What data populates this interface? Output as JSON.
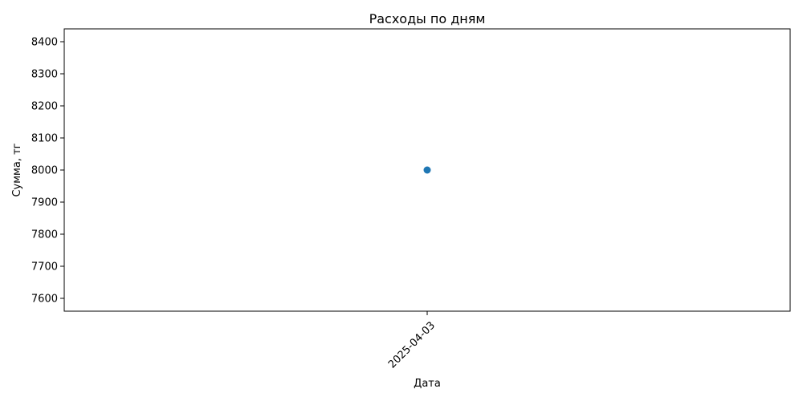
{
  "chart_data": {
    "type": "line",
    "title": "Расходы по дням",
    "xlabel": "Дата",
    "ylabel": "Сумма, тг",
    "x": [
      "2025-04-03"
    ],
    "series": [
      {
        "values": [
          8000
        ],
        "color": "#1f77b4",
        "marker": "circle"
      }
    ],
    "ylim": [
      7560,
      8440
    ],
    "yticks": [
      7600,
      7700,
      7800,
      7900,
      8000,
      8100,
      8200,
      8300,
      8400
    ],
    "grid": false,
    "legend": "none"
  }
}
